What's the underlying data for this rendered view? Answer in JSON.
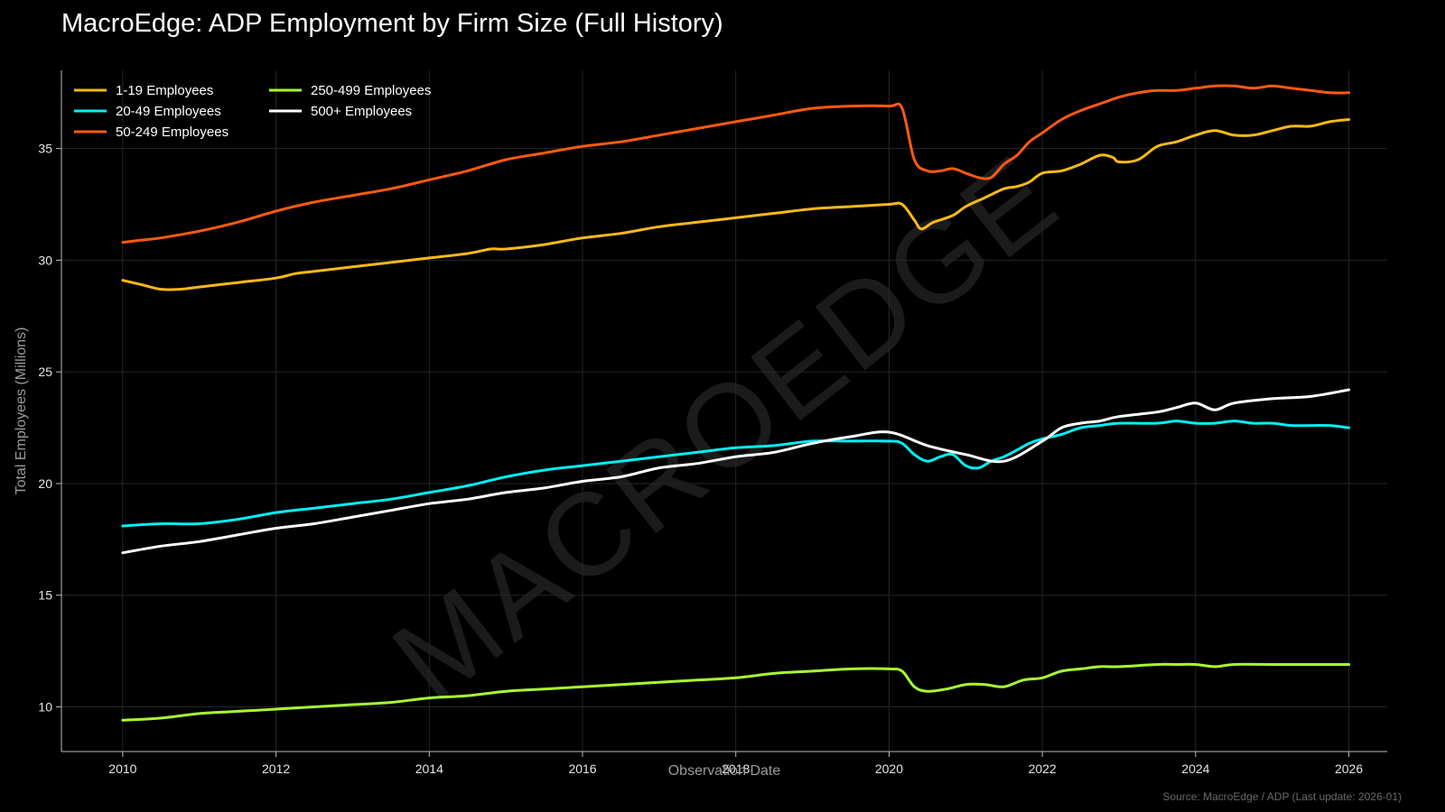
{
  "chart_data": {
    "type": "line",
    "title": "MacroEdge: ADP Employment by Firm Size (Full History)",
    "xlabel": "Observation Date",
    "ylabel": "Total Employees (Millions)",
    "xlim": [
      2009.2,
      2026.5
    ],
    "ylim": [
      8.0,
      38.5
    ],
    "x_ticks": [
      2010,
      2012,
      2014,
      2016,
      2018,
      2020,
      2022,
      2024,
      2026
    ],
    "y_ticks": [
      10,
      15,
      20,
      25,
      30,
      35
    ],
    "grid": true,
    "legend_position": "top-left",
    "background": "#000000",
    "watermark": "MACROEDGE",
    "source_note": "Source: MacroEdge / ADP (Last update: 2026-01)",
    "series": [
      {
        "name": "1-19 Employees",
        "color": "#FBB917",
        "x": [
          2010.0,
          2010.25,
          2010.5,
          2010.75,
          2011.0,
          2011.5,
          2012.0,
          2012.25,
          2012.5,
          2013.0,
          2013.5,
          2014.0,
          2014.5,
          2014.8,
          2015.0,
          2015.5,
          2016.0,
          2016.5,
          2017.0,
          2017.5,
          2018.0,
          2018.5,
          2019.0,
          2019.5,
          2020.0,
          2020.17,
          2020.33,
          2020.42,
          2020.58,
          2020.83,
          2021.0,
          2021.25,
          2021.5,
          2021.67,
          2021.83,
          2022.0,
          2022.25,
          2022.5,
          2022.75,
          2022.92,
          2023.0,
          2023.25,
          2023.5,
          2023.75,
          2024.0,
          2024.25,
          2024.5,
          2024.75,
          2025.0,
          2025.25,
          2025.5,
          2025.75,
          2026.0
        ],
        "values": [
          29.1,
          28.9,
          28.7,
          28.7,
          28.8,
          29.0,
          29.2,
          29.4,
          29.5,
          29.7,
          29.9,
          30.1,
          30.3,
          30.5,
          30.5,
          30.7,
          31.0,
          31.2,
          31.5,
          31.7,
          31.9,
          32.1,
          32.3,
          32.4,
          32.5,
          32.5,
          31.8,
          31.4,
          31.7,
          32.0,
          32.4,
          32.8,
          33.2,
          33.3,
          33.5,
          33.9,
          34.0,
          34.3,
          34.7,
          34.6,
          34.4,
          34.5,
          35.1,
          35.3,
          35.6,
          35.8,
          35.6,
          35.6,
          35.8,
          36.0,
          36.0,
          36.2,
          36.3
        ]
      },
      {
        "name": "20-49 Employees",
        "color": "#00F0F0",
        "x": [
          2010.0,
          2010.5,
          2011.0,
          2011.5,
          2012.0,
          2012.5,
          2013.0,
          2013.5,
          2014.0,
          2014.5,
          2015.0,
          2015.5,
          2016.0,
          2016.5,
          2017.0,
          2017.5,
          2018.0,
          2018.5,
          2019.0,
          2019.5,
          2020.0,
          2020.17,
          2020.33,
          2020.5,
          2020.67,
          2020.83,
          2021.0,
          2021.17,
          2021.33,
          2021.5,
          2021.67,
          2021.83,
          2022.0,
          2022.25,
          2022.5,
          2022.75,
          2023.0,
          2023.5,
          2023.75,
          2024.0,
          2024.25,
          2024.5,
          2024.75,
          2025.0,
          2025.25,
          2025.5,
          2025.75,
          2026.0
        ],
        "values": [
          18.1,
          18.2,
          18.2,
          18.4,
          18.7,
          18.9,
          19.1,
          19.3,
          19.6,
          19.9,
          20.3,
          20.6,
          20.8,
          21.0,
          21.2,
          21.4,
          21.6,
          21.7,
          21.9,
          21.9,
          21.9,
          21.8,
          21.3,
          21.0,
          21.2,
          21.3,
          20.8,
          20.7,
          21.0,
          21.2,
          21.5,
          21.8,
          22.0,
          22.2,
          22.5,
          22.6,
          22.7,
          22.7,
          22.8,
          22.7,
          22.7,
          22.8,
          22.7,
          22.7,
          22.6,
          22.6,
          22.6,
          22.5
        ]
      },
      {
        "name": "50-249 Employees",
        "color": "#FF5A10",
        "x": [
          2010.0,
          2010.25,
          2010.5,
          2011.0,
          2011.5,
          2012.0,
          2012.5,
          2013.0,
          2013.5,
          2014.0,
          2014.5,
          2015.0,
          2015.5,
          2016.0,
          2016.5,
          2017.0,
          2017.5,
          2018.0,
          2018.5,
          2019.0,
          2019.5,
          2020.0,
          2020.17,
          2020.33,
          2020.5,
          2020.67,
          2020.83,
          2021.0,
          2021.17,
          2021.33,
          2021.5,
          2021.67,
          2021.83,
          2022.0,
          2022.25,
          2022.5,
          2022.75,
          2023.0,
          2023.25,
          2023.5,
          2023.75,
          2024.0,
          2024.25,
          2024.5,
          2024.75,
          2025.0,
          2025.25,
          2025.5,
          2025.75,
          2026.0
        ],
        "values": [
          30.8,
          30.9,
          31.0,
          31.3,
          31.7,
          32.2,
          32.6,
          32.9,
          33.2,
          33.6,
          34.0,
          34.5,
          34.8,
          35.1,
          35.3,
          35.6,
          35.9,
          36.2,
          36.5,
          36.8,
          36.9,
          36.9,
          36.8,
          34.5,
          34.0,
          34.0,
          34.1,
          33.9,
          33.7,
          33.7,
          34.3,
          34.7,
          35.3,
          35.7,
          36.3,
          36.7,
          37.0,
          37.3,
          37.5,
          37.6,
          37.6,
          37.7,
          37.8,
          37.8,
          37.7,
          37.8,
          37.7,
          37.6,
          37.5,
          37.5
        ]
      },
      {
        "name": "250-499 Employees",
        "color": "#A8FA32",
        "x": [
          2010.0,
          2010.5,
          2011.0,
          2011.5,
          2012.0,
          2012.5,
          2013.0,
          2013.5,
          2014.0,
          2014.5,
          2015.0,
          2015.5,
          2016.0,
          2016.5,
          2017.0,
          2017.5,
          2018.0,
          2018.5,
          2019.0,
          2019.5,
          2020.0,
          2020.17,
          2020.33,
          2020.5,
          2020.75,
          2021.0,
          2021.25,
          2021.5,
          2021.75,
          2022.0,
          2022.25,
          2022.5,
          2022.75,
          2023.0,
          2023.5,
          2023.75,
          2024.0,
          2024.25,
          2024.5,
          2025.0,
          2025.5,
          2026.0
        ],
        "values": [
          9.4,
          9.5,
          9.7,
          9.8,
          9.9,
          10.0,
          10.1,
          10.2,
          10.4,
          10.5,
          10.7,
          10.8,
          10.9,
          11.0,
          11.1,
          11.2,
          11.3,
          11.5,
          11.6,
          11.7,
          11.7,
          11.6,
          10.9,
          10.7,
          10.8,
          11.0,
          11.0,
          10.9,
          11.2,
          11.3,
          11.6,
          11.7,
          11.8,
          11.8,
          11.9,
          11.9,
          11.9,
          11.8,
          11.9,
          11.9,
          11.9,
          11.9
        ]
      },
      {
        "name": "500+ Employees",
        "color": "#FFFFFF",
        "x": [
          2010.0,
          2010.5,
          2011.0,
          2011.5,
          2012.0,
          2012.5,
          2013.0,
          2013.5,
          2014.0,
          2014.5,
          2015.0,
          2015.5,
          2016.0,
          2016.5,
          2017.0,
          2017.5,
          2018.0,
          2018.5,
          2019.0,
          2019.5,
          2020.0,
          2020.5,
          2021.0,
          2021.5,
          2022.0,
          2022.25,
          2022.5,
          2022.75,
          2023.0,
          2023.5,
          2023.75,
          2024.0,
          2024.25,
          2024.5,
          2025.0,
          2025.5,
          2026.0
        ],
        "values": [
          16.9,
          17.2,
          17.4,
          17.7,
          18.0,
          18.2,
          18.5,
          18.8,
          19.1,
          19.3,
          19.6,
          19.8,
          20.1,
          20.3,
          20.7,
          20.9,
          21.2,
          21.4,
          21.8,
          22.1,
          22.3,
          21.7,
          21.3,
          21.0,
          21.9,
          22.5,
          22.7,
          22.8,
          23.0,
          23.2,
          23.4,
          23.6,
          23.3,
          23.6,
          23.8,
          23.9,
          24.2
        ]
      }
    ]
  }
}
